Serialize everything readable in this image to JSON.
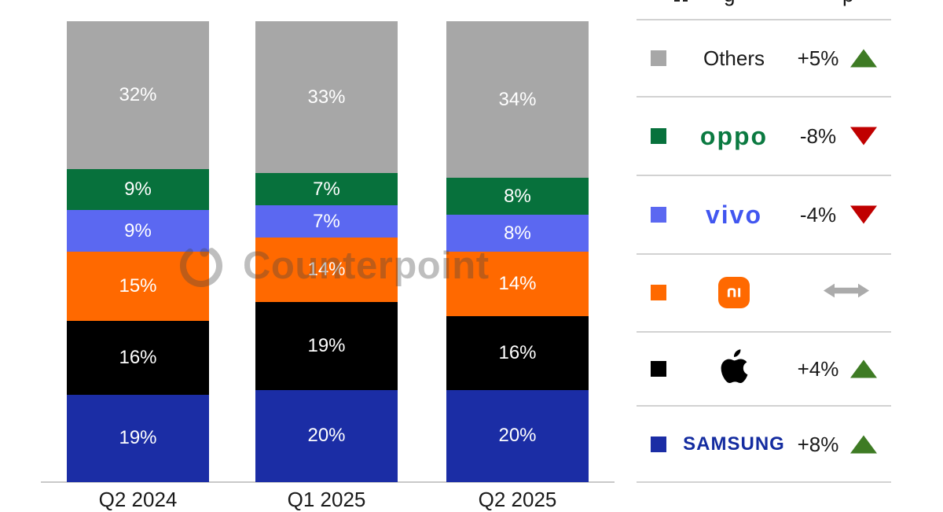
{
  "title_fragments": [
    "g",
    "p"
  ],
  "watermark": {
    "brand": "Counterpoint"
  },
  "chart_data": {
    "type": "bar",
    "subtype": "stacked-percent",
    "categories": [
      "Q2 2024",
      "Q1 2025",
      "Q2 2025"
    ],
    "series": [
      {
        "name": "Samsung",
        "color": "#1B2DA5",
        "values": [
          19,
          20,
          20
        ]
      },
      {
        "name": "Apple",
        "color": "#000000",
        "values": [
          16,
          19,
          16
        ]
      },
      {
        "name": "Xiaomi",
        "color": "#FF6900",
        "values": [
          15,
          14,
          14
        ]
      },
      {
        "name": "vivo",
        "color": "#5B68F1",
        "values": [
          9,
          7,
          8
        ]
      },
      {
        "name": "OPPO",
        "color": "#07713C",
        "values": [
          9,
          7,
          8
        ]
      },
      {
        "name": "Others",
        "color": "#A7A7A7",
        "values": [
          32,
          33,
          34
        ]
      }
    ],
    "value_suffix": "%",
    "ylim": [
      0,
      100
    ],
    "grid": false,
    "legend_position": "right"
  },
  "legend": {
    "rows": [
      {
        "brand": "Others",
        "display": "Others",
        "change": "+5%",
        "trend": "up",
        "color": "#A7A7A7"
      },
      {
        "brand": "OPPO",
        "display": "oppo",
        "change": "-8%",
        "trend": "down",
        "color": "#07713C"
      },
      {
        "brand": "vivo",
        "display": "vivo",
        "change": "-4%",
        "trend": "down",
        "color": "#5B68F1"
      },
      {
        "brand": "Xiaomi",
        "display": "mi",
        "change": "",
        "trend": "flat",
        "color": "#FF6900"
      },
      {
        "brand": "Apple",
        "display": "",
        "change": "+4%",
        "trend": "up",
        "color": "#000000"
      },
      {
        "brand": "Samsung",
        "display": "SAMSUNG",
        "change": "+8%",
        "trend": "up",
        "color": "#1B2DA5"
      }
    ],
    "trend_colors": {
      "up": "#3E7B24",
      "down": "#C00000",
      "flat": "#ABABAB"
    }
  }
}
